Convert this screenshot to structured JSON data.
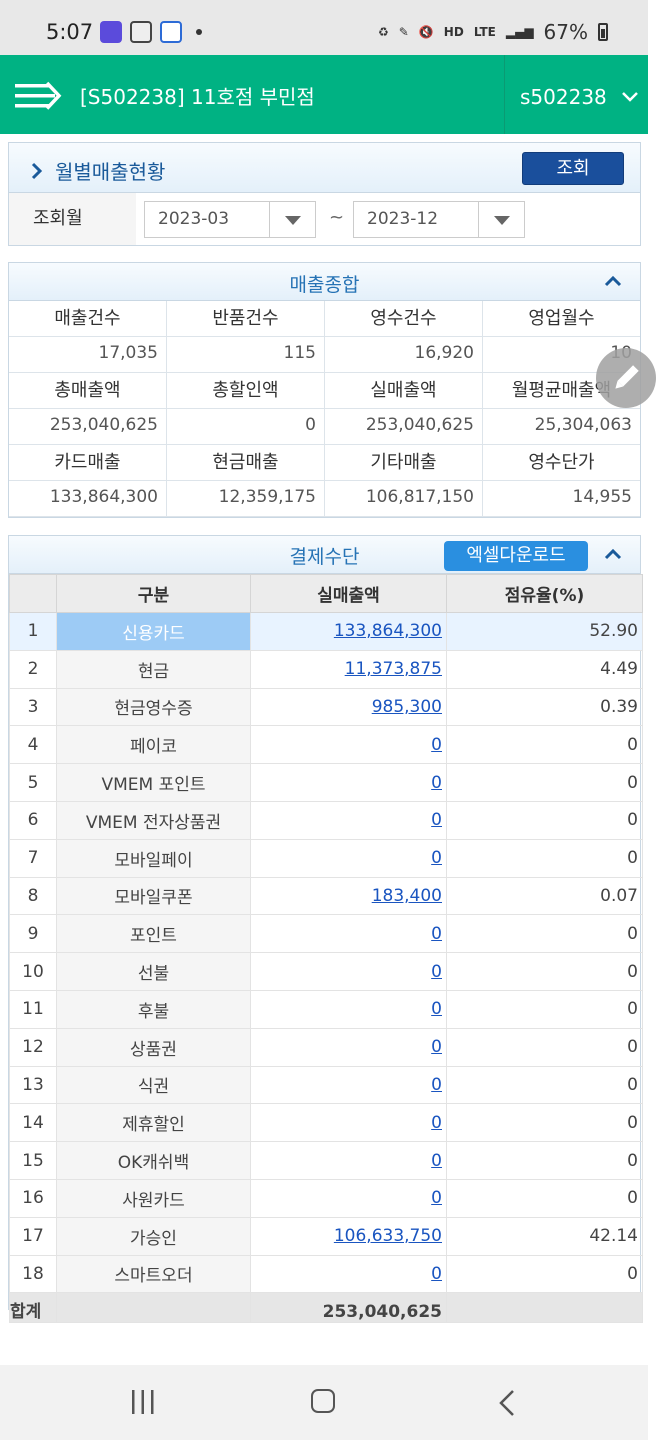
{
  "status_bar": {
    "time": "5:07",
    "battery": "67%",
    "net_hd": "HD",
    "net_lte": "LTE"
  },
  "header": {
    "store": "[S502238] 11호점 부민점",
    "user": "s502238"
  },
  "search": {
    "title": "월별매출현황",
    "query_button": "조회",
    "month_label": "조회월",
    "from": "2023-03",
    "to": "2023-12",
    "separator": "~"
  },
  "summary": {
    "title": "매출종합",
    "rows": [
      {
        "labels": [
          "매출건수",
          "반품건수",
          "영수건수",
          "영업월수"
        ],
        "values": [
          "17,035",
          "115",
          "16,920",
          "10"
        ]
      },
      {
        "labels": [
          "총매출액",
          "총할인액",
          "실매출액",
          "월평균매출액"
        ],
        "values": [
          "253,040,625",
          "0",
          "253,040,625",
          "25,304,063"
        ]
      },
      {
        "labels": [
          "카드매출",
          "현금매출",
          "기타매출",
          "영수단가"
        ],
        "values": [
          "133,864,300",
          "12,359,175",
          "106,817,150",
          "14,955"
        ]
      }
    ]
  },
  "payment": {
    "title": "결제수단",
    "excel_button": "엑셀다운로드",
    "columns": [
      "구분",
      "실매출액",
      "점유율(%)"
    ],
    "rows": [
      {
        "no": "1",
        "name": "신용카드",
        "amount": "133,864,300",
        "share": "52.90"
      },
      {
        "no": "2",
        "name": "현금",
        "amount": "11,373,875",
        "share": "4.49"
      },
      {
        "no": "3",
        "name": "현금영수증",
        "amount": "985,300",
        "share": "0.39"
      },
      {
        "no": "4",
        "name": "페이코",
        "amount": "0",
        "share": "0"
      },
      {
        "no": "5",
        "name": "VMEM 포인트",
        "amount": "0",
        "share": "0"
      },
      {
        "no": "6",
        "name": "VMEM 전자상품권",
        "amount": "0",
        "share": "0"
      },
      {
        "no": "7",
        "name": "모바일페이",
        "amount": "0",
        "share": "0"
      },
      {
        "no": "8",
        "name": "모바일쿠폰",
        "amount": "183,400",
        "share": "0.07"
      },
      {
        "no": "9",
        "name": "포인트",
        "amount": "0",
        "share": "0"
      },
      {
        "no": "10",
        "name": "선불",
        "amount": "0",
        "share": "0"
      },
      {
        "no": "11",
        "name": "후불",
        "amount": "0",
        "share": "0"
      },
      {
        "no": "12",
        "name": "상품권",
        "amount": "0",
        "share": "0"
      },
      {
        "no": "13",
        "name": "식권",
        "amount": "0",
        "share": "0"
      },
      {
        "no": "14",
        "name": "제휴할인",
        "amount": "0",
        "share": "0"
      },
      {
        "no": "15",
        "name": "OK캐쉬백",
        "amount": "0",
        "share": "0"
      },
      {
        "no": "16",
        "name": "사원카드",
        "amount": "0",
        "share": "0"
      },
      {
        "no": "17",
        "name": "가승인",
        "amount": "106,633,750",
        "share": "42.14"
      },
      {
        "no": "18",
        "name": "스마트오더",
        "amount": "0",
        "share": "0"
      }
    ],
    "total": {
      "label": "합계",
      "amount": "253,040,625"
    }
  },
  "colors": {
    "header_green": "#00b283",
    "primary_blue": "#1a4f9c",
    "excel_blue": "#2a8fe0",
    "link_blue": "#1a55c0",
    "selected_cell": "#9dcbf5"
  }
}
